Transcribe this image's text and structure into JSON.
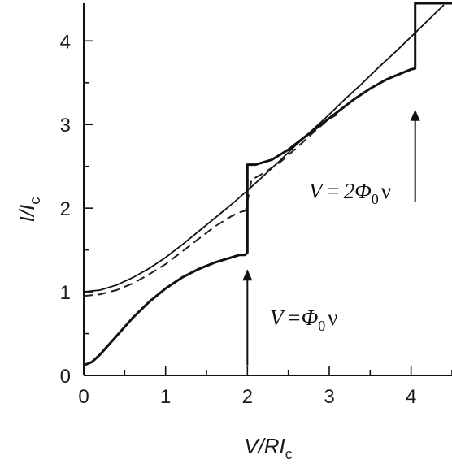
{
  "chart_data": {
    "type": "line",
    "xlabel": {
      "main": "V/RI",
      "sub": "c"
    },
    "ylabel": {
      "main": "I/I",
      "sub": "c"
    },
    "xlim": [
      0,
      4.5
    ],
    "ylim": [
      0,
      4.45
    ],
    "x_ticks": [
      0,
      1,
      2,
      3,
      4
    ],
    "y_ticks": [
      0,
      1,
      2,
      3,
      4
    ],
    "x_minor_step": 0.5,
    "y_minor_step": 0.5,
    "grid": false,
    "series": [
      {
        "style": "thin-solid",
        "points": [
          [
            0,
            1.0
          ],
          [
            0.2,
            1.02
          ],
          [
            0.4,
            1.08
          ],
          [
            0.6,
            1.17
          ],
          [
            0.8,
            1.28
          ],
          [
            1.0,
            1.41
          ],
          [
            1.2,
            1.56
          ],
          [
            1.4,
            1.72
          ],
          [
            1.6,
            1.88
          ],
          [
            1.8,
            2.04
          ],
          [
            2.0,
            2.21
          ],
          [
            2.2,
            2.39
          ],
          [
            2.4,
            2.57
          ],
          [
            2.6,
            2.76
          ],
          [
            2.8,
            2.94
          ],
          [
            3.0,
            3.12
          ],
          [
            3.2,
            3.31
          ],
          [
            3.4,
            3.49
          ],
          [
            3.6,
            3.68
          ],
          [
            3.8,
            3.86
          ],
          [
            4.0,
            4.05
          ],
          [
            4.2,
            4.24
          ],
          [
            4.4,
            4.43
          ]
        ]
      },
      {
        "style": "dashed",
        "points": [
          [
            0,
            0.95
          ],
          [
            0.2,
            0.97
          ],
          [
            0.4,
            1.02
          ],
          [
            0.6,
            1.1
          ],
          [
            0.8,
            1.21
          ],
          [
            1.0,
            1.33
          ],
          [
            1.2,
            1.48
          ],
          [
            1.4,
            1.63
          ],
          [
            1.6,
            1.78
          ],
          [
            1.8,
            1.9
          ],
          [
            1.9,
            1.95
          ],
          [
            1.98,
            1.97
          ],
          [
            2.05,
            2.34
          ],
          [
            2.2,
            2.42
          ],
          [
            2.4,
            2.55
          ],
          [
            2.6,
            2.72
          ],
          [
            2.8,
            2.9
          ],
          [
            3.0,
            3.07
          ],
          [
            3.1,
            3.12
          ]
        ]
      },
      {
        "style": "thick-solid",
        "points": [
          [
            0,
            0.12
          ],
          [
            0.1,
            0.16
          ],
          [
            0.2,
            0.25
          ],
          [
            0.4,
            0.47
          ],
          [
            0.6,
            0.69
          ],
          [
            0.8,
            0.88
          ],
          [
            1.0,
            1.04
          ],
          [
            1.2,
            1.17
          ],
          [
            1.4,
            1.27
          ],
          [
            1.6,
            1.35
          ],
          [
            1.8,
            1.41
          ],
          [
            1.9,
            1.44
          ],
          [
            1.97,
            1.44
          ],
          [
            2.0,
            1.47
          ],
          [
            2.0,
            2.52
          ],
          [
            2.1,
            2.52
          ],
          [
            2.3,
            2.58
          ],
          [
            2.5,
            2.7
          ],
          [
            2.7,
            2.85
          ],
          [
            2.9,
            3.0
          ],
          [
            3.1,
            3.15
          ],
          [
            3.3,
            3.3
          ],
          [
            3.5,
            3.43
          ],
          [
            3.7,
            3.54
          ],
          [
            3.9,
            3.62
          ],
          [
            4.0,
            3.66
          ],
          [
            4.05,
            3.67
          ],
          [
            4.05,
            4.45
          ],
          [
            4.5,
            4.45
          ]
        ]
      }
    ],
    "annotations": [
      {
        "id": "phi1",
        "text_pre": "V",
        "text_eq": "=",
        "text_coef": "",
        "text_phi": "Φ",
        "text_sub": "0",
        "text_nu": "ν",
        "arrow_x": 2.0,
        "arrow_from": 0.12,
        "arrow_to": 1.27
      },
      {
        "id": "phi2",
        "text_pre": "V",
        "text_eq": "=",
        "text_coef": "2",
        "text_phi": "Φ",
        "text_sub": "0",
        "text_nu": "ν",
        "arrow_x": 4.05,
        "arrow_from": 2.07,
        "arrow_to": 3.18
      }
    ]
  }
}
